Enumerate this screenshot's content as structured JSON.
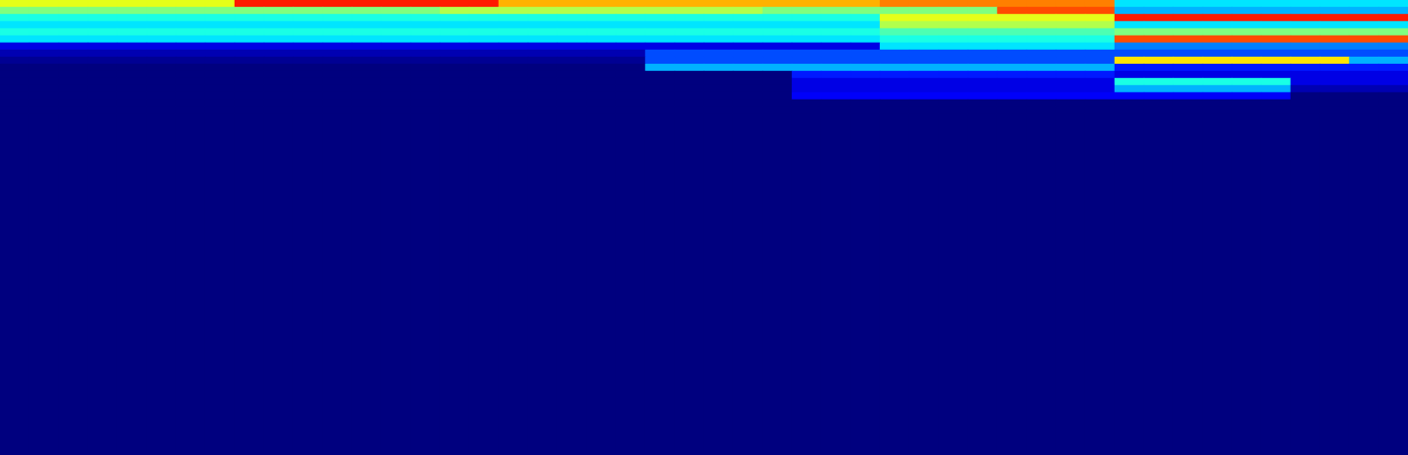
{
  "chart_data": {
    "type": "heatmap",
    "tick_labels": false,
    "xlim": [
      0,
      1584
    ],
    "ylim": [
      0,
      512
    ],
    "zlim": [
      0,
      1
    ],
    "x_edges": [
      0,
      33,
      66,
      99,
      132,
      165,
      198,
      231,
      264,
      297,
      330,
      363,
      396,
      429,
      462,
      495,
      528,
      561,
      594,
      627,
      660,
      693,
      726,
      759,
      792,
      825,
      858,
      891,
      924,
      957,
      990,
      1023,
      1056,
      1089,
      1122,
      1155,
      1188,
      1221,
      1254,
      1287,
      1320,
      1353,
      1386,
      1419,
      1452,
      1485,
      1518,
      1551,
      1584
    ],
    "y_edges": [
      0,
      8,
      16,
      24,
      32,
      40,
      48,
      56,
      64,
      72,
      80,
      88,
      96,
      104,
      112,
      120,
      128,
      512
    ],
    "cells": [
      [
        0.6,
        0.6,
        0.6,
        0.6,
        0.6,
        0.6,
        0.6,
        0.6,
        0.85,
        0.85,
        0.85,
        0.85,
        0.85,
        0.85,
        0.85,
        0.85,
        0.85,
        0.7,
        0.7,
        0.7,
        0.7,
        0.7,
        0.7,
        0.7,
        0.7,
        0.7,
        0.7,
        0.7,
        0.7,
        0.7,
        0.75,
        0.75,
        0.75,
        0.75,
        0.75,
        0.75,
        0.75,
        0.75,
        0.35,
        0.35,
        0.35,
        0.35,
        0.35,
        0.35,
        0.35,
        0.35,
        0.35,
        0.35
      ],
      [
        0.5,
        0.5,
        0.5,
        0.5,
        0.5,
        0.5,
        0.5,
        0.5,
        0.5,
        0.5,
        0.5,
        0.5,
        0.5,
        0.5,
        0.5,
        0.55,
        0.55,
        0.55,
        0.55,
        0.55,
        0.55,
        0.55,
        0.55,
        0.55,
        0.55,
        0.55,
        0.5,
        0.5,
        0.5,
        0.5,
        0.5,
        0.5,
        0.5,
        0.5,
        0.8,
        0.8,
        0.8,
        0.8,
        0.3,
        0.3,
        0.3,
        0.3,
        0.3,
        0.3,
        0.3,
        0.3,
        0.3,
        0.3
      ],
      [
        0.4,
        0.4,
        0.4,
        0.4,
        0.4,
        0.4,
        0.4,
        0.4,
        0.4,
        0.4,
        0.4,
        0.4,
        0.4,
        0.4,
        0.4,
        0.4,
        0.4,
        0.4,
        0.4,
        0.4,
        0.4,
        0.4,
        0.4,
        0.4,
        0.4,
        0.4,
        0.4,
        0.4,
        0.4,
        0.4,
        0.6,
        0.6,
        0.6,
        0.6,
        0.6,
        0.6,
        0.6,
        0.6,
        0.85,
        0.85,
        0.85,
        0.85,
        0.85,
        0.85,
        0.85,
        0.85,
        0.85,
        0.85
      ],
      [
        0.35,
        0.35,
        0.35,
        0.35,
        0.35,
        0.35,
        0.35,
        0.35,
        0.35,
        0.35,
        0.35,
        0.35,
        0.35,
        0.35,
        0.35,
        0.35,
        0.35,
        0.35,
        0.35,
        0.35,
        0.35,
        0.35,
        0.35,
        0.35,
        0.35,
        0.35,
        0.35,
        0.35,
        0.35,
        0.35,
        0.55,
        0.55,
        0.55,
        0.55,
        0.55,
        0.55,
        0.55,
        0.55,
        0.35,
        0.35,
        0.35,
        0.35,
        0.35,
        0.35,
        0.35,
        0.35,
        0.35,
        0.35
      ],
      [
        0.4,
        0.4,
        0.4,
        0.4,
        0.4,
        0.4,
        0.4,
        0.4,
        0.4,
        0.4,
        0.4,
        0.4,
        0.4,
        0.4,
        0.4,
        0.4,
        0.4,
        0.4,
        0.4,
        0.4,
        0.4,
        0.4,
        0.4,
        0.4,
        0.4,
        0.4,
        0.4,
        0.4,
        0.4,
        0.4,
        0.45,
        0.45,
        0.45,
        0.45,
        0.45,
        0.45,
        0.45,
        0.45,
        0.5,
        0.5,
        0.5,
        0.5,
        0.5,
        0.5,
        0.5,
        0.5,
        0.5,
        0.5
      ],
      [
        0.35,
        0.35,
        0.35,
        0.35,
        0.35,
        0.35,
        0.35,
        0.35,
        0.35,
        0.35,
        0.35,
        0.35,
        0.35,
        0.35,
        0.35,
        0.35,
        0.35,
        0.35,
        0.35,
        0.35,
        0.35,
        0.35,
        0.35,
        0.35,
        0.35,
        0.35,
        0.35,
        0.35,
        0.35,
        0.35,
        0.4,
        0.4,
        0.4,
        0.4,
        0.4,
        0.4,
        0.4,
        0.4,
        0.8,
        0.8,
        0.8,
        0.8,
        0.8,
        0.8,
        0.8,
        0.8,
        0.8,
        0.8
      ],
      [
        0.1,
        0.1,
        0.1,
        0.1,
        0.1,
        0.1,
        0.1,
        0.1,
        0.1,
        0.1,
        0.1,
        0.1,
        0.1,
        0.1,
        0.1,
        0.1,
        0.1,
        0.1,
        0.1,
        0.1,
        0.1,
        0.1,
        0.1,
        0.1,
        0.1,
        0.1,
        0.1,
        0.1,
        0.1,
        0.1,
        0.35,
        0.35,
        0.35,
        0.35,
        0.35,
        0.35,
        0.35,
        0.35,
        0.25,
        0.25,
        0.25,
        0.25,
        0.25,
        0.25,
        0.25,
        0.25,
        0.25,
        0.25
      ],
      [
        0.05,
        0.05,
        0.05,
        0.05,
        0.05,
        0.05,
        0.05,
        0.05,
        0.05,
        0.05,
        0.05,
        0.05,
        0.05,
        0.05,
        0.05,
        0.05,
        0.05,
        0.05,
        0.05,
        0.05,
        0.05,
        0.05,
        0.2,
        0.2,
        0.2,
        0.2,
        0.2,
        0.2,
        0.2,
        0.2,
        0.2,
        0.2,
        0.2,
        0.2,
        0.2,
        0.2,
        0.2,
        0.2,
        0.2,
        0.2,
        0.2,
        0.2,
        0.2,
        0.2,
        0.2,
        0.2,
        0.2,
        0.2
      ],
      [
        0.02,
        0.02,
        0.02,
        0.02,
        0.02,
        0.02,
        0.02,
        0.02,
        0.02,
        0.02,
        0.02,
        0.02,
        0.02,
        0.02,
        0.02,
        0.02,
        0.02,
        0.02,
        0.02,
        0.02,
        0.02,
        0.02,
        0.2,
        0.2,
        0.2,
        0.2,
        0.2,
        0.2,
        0.2,
        0.2,
        0.2,
        0.2,
        0.2,
        0.2,
        0.2,
        0.2,
        0.2,
        0.2,
        0.65,
        0.65,
        0.65,
        0.65,
        0.65,
        0.65,
        0.65,
        0.65,
        0.3,
        0.3
      ],
      [
        0,
        0,
        0,
        0,
        0,
        0,
        0,
        0,
        0,
        0,
        0,
        0,
        0,
        0,
        0,
        0,
        0,
        0,
        0,
        0,
        0,
        0,
        0.3,
        0.3,
        0.3,
        0.3,
        0.3,
        0.3,
        0.3,
        0.3,
        0.3,
        0.3,
        0.3,
        0.3,
        0.3,
        0.3,
        0.3,
        0.3,
        0.15,
        0.15,
        0.15,
        0.15,
        0.15,
        0.15,
        0.15,
        0.15,
        0.15,
        0.15
      ],
      [
        0,
        0,
        0,
        0,
        0,
        0,
        0,
        0,
        0,
        0,
        0,
        0,
        0,
        0,
        0,
        0,
        0,
        0,
        0,
        0,
        0,
        0,
        0,
        0,
        0,
        0,
        0,
        0.15,
        0.15,
        0.15,
        0.15,
        0.15,
        0.15,
        0.15,
        0.15,
        0.15,
        0.15,
        0.15,
        0.1,
        0.1,
        0.1,
        0.1,
        0.1,
        0.1,
        0.1,
        0.1,
        0.1,
        0.1
      ],
      [
        0,
        0,
        0,
        0,
        0,
        0,
        0,
        0,
        0,
        0,
        0,
        0,
        0,
        0,
        0,
        0,
        0,
        0,
        0,
        0,
        0,
        0,
        0,
        0,
        0,
        0,
        0,
        0.1,
        0.1,
        0.1,
        0.1,
        0.1,
        0.1,
        0.1,
        0.1,
        0.1,
        0.1,
        0.1,
        0.4,
        0.4,
        0.4,
        0.4,
        0.4,
        0.4,
        0.1,
        0.1,
        0.1,
        0.1
      ],
      [
        0,
        0,
        0,
        0,
        0,
        0,
        0,
        0,
        0,
        0,
        0,
        0,
        0,
        0,
        0,
        0,
        0,
        0,
        0,
        0,
        0,
        0,
        0,
        0,
        0,
        0,
        0,
        0.1,
        0.1,
        0.1,
        0.1,
        0.1,
        0.1,
        0.1,
        0.1,
        0.1,
        0.1,
        0.1,
        0.3,
        0.3,
        0.3,
        0.3,
        0.3,
        0.3,
        0.05,
        0.05,
        0.05,
        0.05
      ],
      [
        0,
        0,
        0,
        0,
        0,
        0,
        0,
        0,
        0,
        0,
        0,
        0,
        0,
        0,
        0,
        0,
        0,
        0,
        0,
        0,
        0,
        0,
        0,
        0,
        0,
        0,
        0,
        0.12,
        0.12,
        0.12,
        0.12,
        0.12,
        0.12,
        0.12,
        0.12,
        0.12,
        0.12,
        0.12,
        0.12,
        0.12,
        0.12,
        0.12,
        0.12,
        0.12,
        0,
        0,
        0,
        0
      ],
      [
        0,
        0,
        0,
        0,
        0,
        0,
        0,
        0,
        0,
        0,
        0,
        0,
        0,
        0,
        0,
        0,
        0,
        0,
        0,
        0,
        0,
        0,
        0,
        0,
        0,
        0,
        0,
        0,
        0,
        0,
        0,
        0,
        0,
        0,
        0,
        0,
        0,
        0,
        0,
        0,
        0,
        0,
        0,
        0,
        0,
        0,
        0,
        0
      ],
      [
        0,
        0,
        0,
        0,
        0,
        0,
        0,
        0,
        0,
        0,
        0,
        0,
        0,
        0,
        0,
        0,
        0,
        0,
        0,
        0,
        0,
        0,
        0,
        0,
        0,
        0,
        0,
        0,
        0,
        0,
        0,
        0,
        0,
        0,
        0,
        0,
        0,
        0,
        0,
        0,
        0,
        0,
        0,
        0,
        0,
        0,
        0,
        0
      ],
      [
        0,
        0,
        0,
        0,
        0,
        0,
        0,
        0,
        0,
        0,
        0,
        0,
        0,
        0,
        0,
        0,
        0,
        0,
        0,
        0,
        0,
        0,
        0,
        0,
        0,
        0,
        0,
        0,
        0,
        0,
        0,
        0,
        0,
        0,
        0,
        0,
        0,
        0,
        0,
        0,
        0,
        0,
        0,
        0,
        0,
        0,
        0,
        0
      ]
    ]
  }
}
